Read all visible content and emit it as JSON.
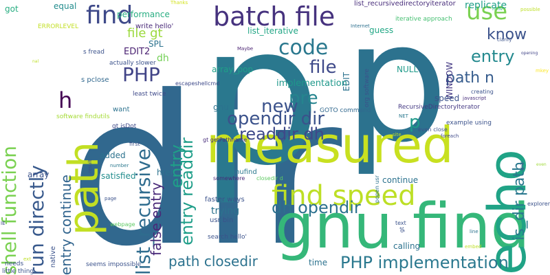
{
  "word_cloud": {
    "background": "#ffffff",
    "words": [
      {
        "text": "dir",
        "color": "#31688e"
      },
      {
        "text": "p",
        "color": "#2a788e"
      },
      {
        "text": "p",
        "color": "#2c728e"
      },
      {
        "text": "measured",
        "color": "#c8e020"
      },
      {
        "text": "gnu find",
        "color": "#35b779"
      },
      {
        "text": "path",
        "color": "#c2df23"
      },
      {
        "text": "echo",
        "color": "#20a386"
      },
      {
        "text": "batch file",
        "color": "#46327e"
      },
      {
        "text": "find speed",
        "color": "#bddf26"
      },
      {
        "text": "shell function",
        "color": "#7ad151"
      },
      {
        "text": "run directly",
        "color": "#38598c"
      },
      {
        "text": "list_recursive",
        "color": "#2f6c8e"
      },
      {
        "text": "find",
        "color": "#3e4989"
      },
      {
        "text": "use",
        "color": "#7ad151"
      },
      {
        "text": "know",
        "color": "#3b528b"
      },
      {
        "text": "code",
        "color": "#2a788e"
      },
      {
        "text": "PHP",
        "color": "#414487"
      },
      {
        "text": "file",
        "color": "#3e4989"
      },
      {
        "text": "entry",
        "color": "#23898e"
      },
      {
        "text": "entry",
        "color": "#1fa088"
      },
      {
        "text": "entry readdir",
        "color": "#1f9e89"
      },
      {
        "text": "pre",
        "color": "#25848e"
      },
      {
        "text": "new",
        "color": "#3b528b"
      },
      {
        "text": "opendir dir",
        "color": "#3b528b"
      },
      {
        "text": "readdir dh",
        "color": "#3e4989"
      },
      {
        "text": "path n",
        "color": "#365c8d"
      },
      {
        "text": "is_dir path",
        "color": "#2a788e"
      },
      {
        "text": "h",
        "color": "#440154"
      },
      {
        "text": "p",
        "color": "#1f9a8a"
      },
      {
        "text": "dh opendir",
        "color": "#2c718e"
      },
      {
        "text": "false entry",
        "color": "#482878"
      },
      {
        "text": "entry continue",
        "color": "#32658e"
      },
      {
        "text": "PHP implementation",
        "color": "#2a788e"
      },
      {
        "text": "path closedir",
        "color": "#2c728e"
      },
      {
        "text": "file gt",
        "color": "#9bd93c"
      },
      {
        "text": "got",
        "color": "#27ad81"
      },
      {
        "text": "equal",
        "color": "#228c8d"
      },
      {
        "text": "performance",
        "color": "#27ad81"
      },
      {
        "text": "write hello'",
        "color": "#482878"
      },
      {
        "text": "Thanks",
        "color": "#d2e21b"
      },
      {
        "text": "list_recursivedirectoryiterator",
        "color": "#472c7a"
      },
      {
        "text": "replicate",
        "color": "#1fa088"
      },
      {
        "text": "possible",
        "color": "#bddf26"
      },
      {
        "text": "ERRORLEVEL",
        "color": "#c2df23"
      },
      {
        "text": "list_iterative",
        "color": "#21a685"
      },
      {
        "text": "guess",
        "color": "#22a785"
      },
      {
        "text": "iterative approach",
        "color": "#44bf70"
      },
      {
        "text": "mine",
        "color": "#3aba76"
      },
      {
        "text": "Internet",
        "color": "#2d708e"
      },
      {
        "text": "s fread",
        "color": "#3b528b"
      },
      {
        "text": "SPL",
        "color": "#2c728e"
      },
      {
        "text": "EDIT2",
        "color": "#481f70"
      },
      {
        "text": "EDIT",
        "color": "#2c728e"
      },
      {
        "text": "org software",
        "color": "#3b528b"
      },
      {
        "text": "Maybe",
        "color": "#481f70"
      },
      {
        "text": "WINDOW",
        "color": "#443983"
      },
      {
        "text": "clarify",
        "color": "#3b528b"
      },
      {
        "text": "opening",
        "color": "#414487"
      },
      {
        "text": "dh",
        "color": "#73d056"
      },
      {
        "text": "actually slower",
        "color": "#3b528b"
      },
      {
        "text": "s pclose",
        "color": "#31688e"
      },
      {
        "text": "escapeshellcmd",
        "color": "#3e4989"
      },
      {
        "text": "least twice",
        "color": "#3e4989"
      },
      {
        "text": "implementation",
        "color": "#1f988b"
      },
      {
        "text": "array_pop",
        "color": "#1fa088"
      },
      {
        "text": "NULL",
        "color": "#1f9a8a"
      },
      {
        "text": "mkey",
        "color": "#fde725"
      },
      {
        "text": "creating",
        "color": "#3b528b"
      },
      {
        "text": "javascript",
        "color": "#472d7b"
      },
      {
        "text": "speed",
        "color": "#3b528b"
      },
      {
        "text": "RecursiveDirectoryIterator",
        "color": "#443983"
      },
      {
        "text": "gnu",
        "color": "#2c728e"
      },
      {
        "text": "GOTO command",
        "color": "#31688e"
      },
      {
        "text": "NET",
        "color": "#2a788e"
      },
      {
        "text": "want",
        "color": "#2c728e"
      },
      {
        "text": "software findutils",
        "color": "#a5db36"
      },
      {
        "text": "gt isDot",
        "color": "#3e4989"
      },
      {
        "text": "even close",
        "color": "#3b528b"
      },
      {
        "text": "foreach",
        "color": "#3e4989"
      },
      {
        "text": "example using",
        "color": "#3b528b"
      },
      {
        "text": "site",
        "color": "#bddf26"
      },
      {
        "text": "first",
        "color": "#3b528b"
      },
      {
        "text": "added",
        "color": "#2c728e"
      },
      {
        "text": "gt getPathname",
        "color": "#472d7b"
      },
      {
        "text": "array",
        "color": "#3b528b"
      },
      {
        "text": "satisfied",
        "color": "#228d8d"
      },
      {
        "text": "somewhere",
        "color": "#482878"
      },
      {
        "text": "result",
        "color": "#3b528b"
      },
      {
        "text": "number",
        "color": "#2a788e"
      },
      {
        "text": "href",
        "color": "#2c728e"
      },
      {
        "text": "list_gnufind",
        "color": "#2a788e"
      },
      {
        "text": "closedir d",
        "color": "#5ec962"
      },
      {
        "text": "continue",
        "color": "#2c728e"
      },
      {
        "text": "popen usr",
        "color": "#2c728e"
      },
      {
        "text": "open",
        "color": "#3b528b"
      },
      {
        "text": "even",
        "color": "#a0da39"
      },
      {
        "text": "faster ways",
        "color": "#3b528b"
      },
      {
        "text": "page",
        "color": "#3b528b"
      },
      {
        "text": "explorer",
        "color": "#3b528b"
      },
      {
        "text": "trying",
        "color": "#2c728e"
      },
      {
        "text": "webpage",
        "color": "#5ec962"
      },
      {
        "text": "usr bin",
        "color": "#3b528b"
      },
      {
        "text": "IE",
        "color": "#3e4989"
      },
      {
        "text": "search hello'",
        "color": "#3b528b"
      },
      {
        "text": "calling",
        "color": "#2c728e"
      },
      {
        "text": "text",
        "color": "#3b528b"
      },
      {
        "text": "gt",
        "color": "#3b528b"
      },
      {
        "text": "line",
        "color": "#2c728e"
      },
      {
        "text": "native",
        "color": "#3b528b"
      },
      {
        "text": "seems impossible",
        "color": "#3b528b"
      },
      {
        "text": "needs",
        "color": "#3b528b"
      },
      {
        "text": "little thing",
        "color": "#3b528b"
      },
      {
        "text": "time",
        "color": "#2c728e"
      },
      {
        "text": "ext",
        "color": "#bddf26"
      },
      {
        "text": "embed",
        "color": "#bddf26"
      },
      {
        "text": "nal",
        "color": "#bddf26"
      }
    ]
  }
}
